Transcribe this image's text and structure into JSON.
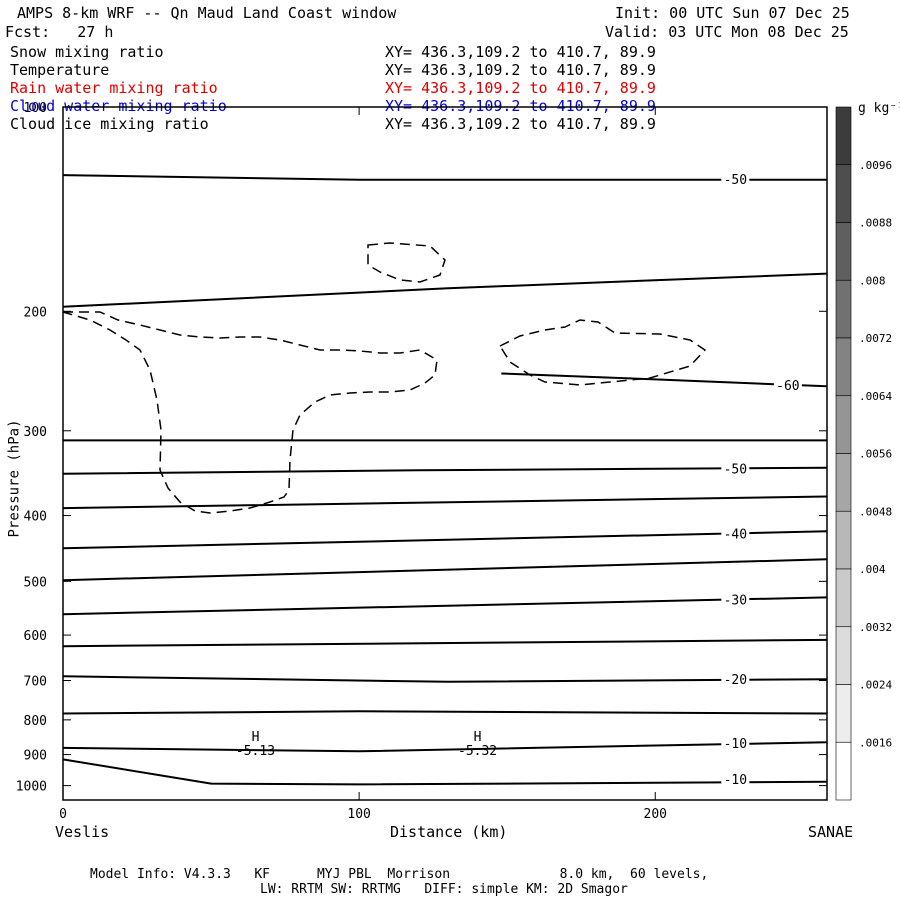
{
  "header": {
    "title": "AMPS 8-km WRF -- Qn Maud Land Coast window",
    "init": "Init: 00 UTC Sun 07 Dec 25",
    "forecast": "Fcst:   27 h",
    "valid": "Valid: 03 UTC Mon 08 Dec 25"
  },
  "fields": [
    {
      "name": "Snow mixing ratio",
      "xy": "XY= 436.3,109.2 to 410.7, 89.9",
      "color": "#000000"
    },
    {
      "name": "Temperature",
      "xy": "XY= 436.3,109.2 to 410.7, 89.9",
      "color": "#000000"
    },
    {
      "name": "Rain water mixing ratio",
      "xy": "XY= 436.3,109.2 to 410.7, 89.9",
      "color": "#e00000"
    },
    {
      "name": "Cloud water mixing ratio",
      "xy": "XY= 436.3,109.2 to 410.7, 89.9",
      "color": "#0000e0"
    },
    {
      "name": "Cloud ice mixing ratio",
      "xy": "XY= 436.3,109.2 to 410.7, 89.9",
      "color": "#000000"
    }
  ],
  "footer": {
    "line1": "Model Info: V4.3.3   KF      MYJ PBL  Morrison              8.0 km,  60 levels,",
    "line2": "LW: RRTM SW: RRTMG   DIFF: simple KM: 2D Smagor"
  },
  "chart_data": {
    "type": "line",
    "title": "",
    "xlabel": "Distance (km)",
    "ylabel": "Pressure (hPa)",
    "xlim": [
      0,
      258
    ],
    "ylim": [
      100,
      1050
    ],
    "y_scale": "log (pressure)",
    "x_ticks": [
      "0",
      "100",
      "200"
    ],
    "y_ticks": [
      "100",
      "200",
      "300",
      "400",
      "500",
      "600",
      "700",
      "800",
      "900",
      "1000"
    ],
    "x_end_labels": {
      "left": "Veslis",
      "right": "SANAE"
    },
    "colorbar": {
      "units": "g kg⁻¹",
      "labels": [
        ".0096",
        ".0088",
        ".008",
        ".0072",
        ".0064",
        ".0056",
        ".0048",
        ".004",
        ".0032",
        ".0024",
        ".0016"
      ]
    },
    "temperature_contours": [
      {
        "label": "-50",
        "points": [
          [
            0,
            126
          ],
          [
            100,
            128
          ],
          [
            258,
            128
          ]
        ]
      },
      {
        "label": "",
        "points": [
          [
            0,
            197
          ],
          [
            130,
            185
          ],
          [
            258,
            176
          ]
        ]
      },
      {
        "label": "-60",
        "points": [
          [
            148,
            247
          ],
          [
            200,
            252
          ],
          [
            258,
            258
          ]
        ]
      },
      {
        "label": "",
        "points": [
          [
            0,
            310
          ],
          [
            258,
            310
          ]
        ]
      },
      {
        "label": "-50",
        "points": [
          [
            0,
            347
          ],
          [
            120,
            343
          ],
          [
            258,
            340
          ]
        ]
      },
      {
        "label": "",
        "points": [
          [
            0,
            390
          ],
          [
            258,
            375
          ]
        ]
      },
      {
        "label": "-40",
        "points": [
          [
            0,
            447
          ],
          [
            258,
            422
          ]
        ]
      },
      {
        "label": "",
        "points": [
          [
            0,
            498
          ],
          [
            258,
            464
          ]
        ]
      },
      {
        "label": "-30",
        "points": [
          [
            0,
            559
          ],
          [
            258,
            528
          ]
        ]
      },
      {
        "label": "",
        "points": [
          [
            0,
            623
          ],
          [
            258,
            610
          ]
        ]
      },
      {
        "label": "-20",
        "points": [
          [
            0,
            690
          ],
          [
            130,
            703
          ],
          [
            258,
            697
          ]
        ]
      },
      {
        "label": "",
        "points": [
          [
            0,
            783
          ],
          [
            100,
            777
          ],
          [
            258,
            783
          ]
        ]
      },
      {
        "label": "-10",
        "points": [
          [
            0,
            880
          ],
          [
            100,
            890
          ],
          [
            258,
            863
          ]
        ]
      },
      {
        "label": "-10",
        "points": [
          [
            0,
            915
          ],
          [
            50,
            993
          ],
          [
            100,
            996
          ],
          [
            258,
            987
          ]
        ]
      }
    ],
    "highs": [
      {
        "label": "H",
        "value": "-5.13",
        "x": 65
      },
      {
        "label": "H",
        "value": "-5.32",
        "x": 140
      }
    ]
  }
}
